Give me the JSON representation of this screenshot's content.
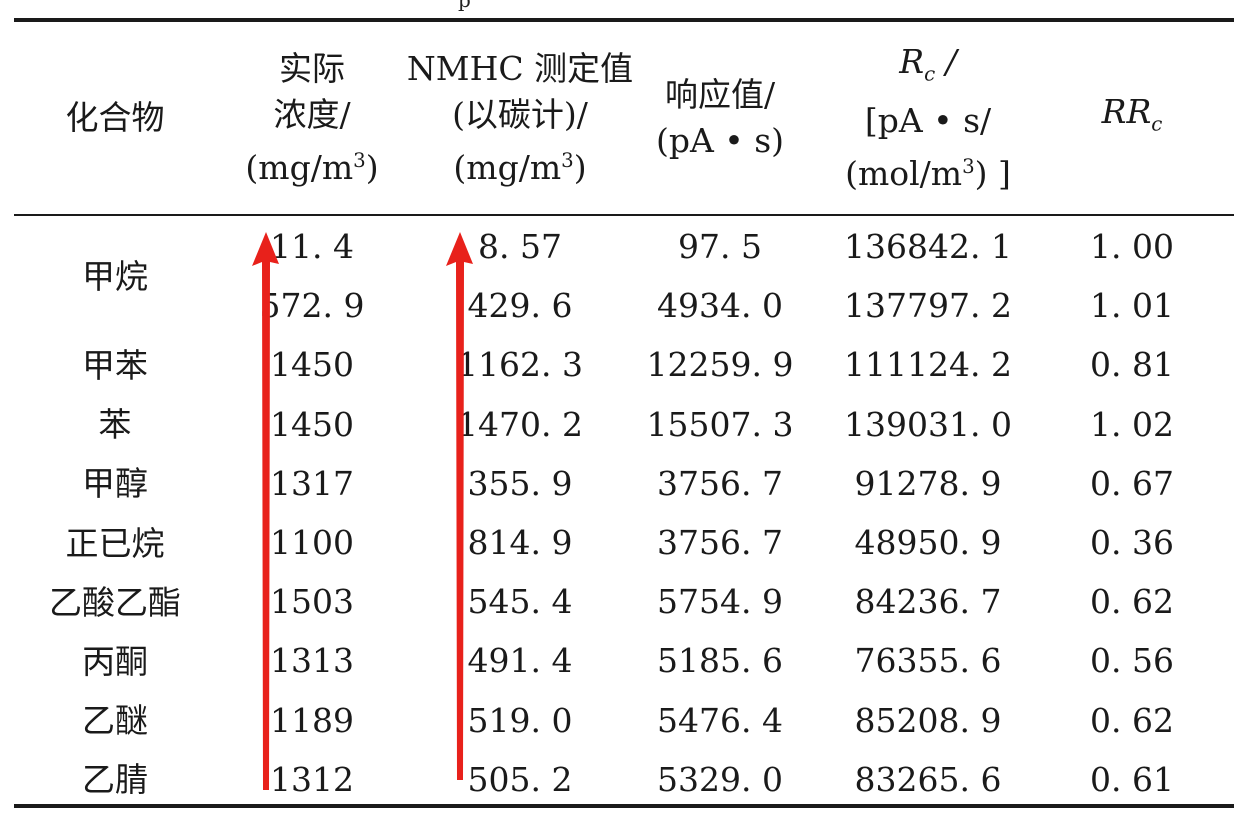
{
  "top_fragment": "p",
  "table": {
    "headers": [
      {
        "lines": [
          "化合物"
        ]
      },
      {
        "lines": [
          "实际",
          "浓度/",
          "(mg/m³)"
        ]
      },
      {
        "lines": [
          "NMHC 测定值",
          "(以碳计)/",
          "(mg/m³)"
        ]
      },
      {
        "lines": [
          "响应值/",
          "(pA • s)"
        ]
      },
      {
        "lines": [
          "Rc /",
          "[pA • s/",
          "(mol/m³) ]"
        ]
      },
      {
        "lines": [
          "RRc"
        ]
      }
    ],
    "groups": [
      {
        "name": "甲烷",
        "rows": [
          [
            "11. 4",
            "8. 57",
            "97. 5",
            "136842. 1",
            "1. 00"
          ],
          [
            "572. 9",
            "429. 6",
            "4934. 0",
            "137797. 2",
            "1. 01"
          ]
        ]
      },
      {
        "name": "甲苯",
        "rows": [
          [
            "1450",
            "1162. 3",
            "12259. 9",
            "111124. 2",
            "0. 81"
          ]
        ]
      },
      {
        "name": "苯",
        "rows": [
          [
            "1450",
            "1470. 2",
            "15507. 3",
            "139031. 0",
            "1. 02"
          ]
        ]
      },
      {
        "name": "甲醇",
        "rows": [
          [
            "1317",
            "355. 9",
            "3756. 7",
            "91278. 9",
            "0. 67"
          ]
        ]
      },
      {
        "name": "正已烷",
        "rows": [
          [
            "1100",
            "814. 9",
            "3756. 7",
            "48950. 9",
            "0. 36"
          ]
        ]
      },
      {
        "name": "乙酸乙酯",
        "rows": [
          [
            "1503",
            "545. 4",
            "5754. 9",
            "84236. 7",
            "0. 62"
          ]
        ]
      },
      {
        "name": "丙酮",
        "rows": [
          [
            "1313",
            "491. 4",
            "5185. 6",
            "76355. 6",
            "0. 56"
          ]
        ]
      },
      {
        "name": "乙醚",
        "rows": [
          [
            "1189",
            "519. 0",
            "5476. 4",
            "85208. 9",
            "0. 62"
          ]
        ]
      },
      {
        "name": "乙腈",
        "rows": [
          [
            "1312",
            "505. 2",
            "5329. 0",
            "83265. 6",
            "0. 61"
          ]
        ]
      }
    ]
  },
  "colors": {
    "rule": "#1a1a1a",
    "arrow": "#e8211b"
  }
}
